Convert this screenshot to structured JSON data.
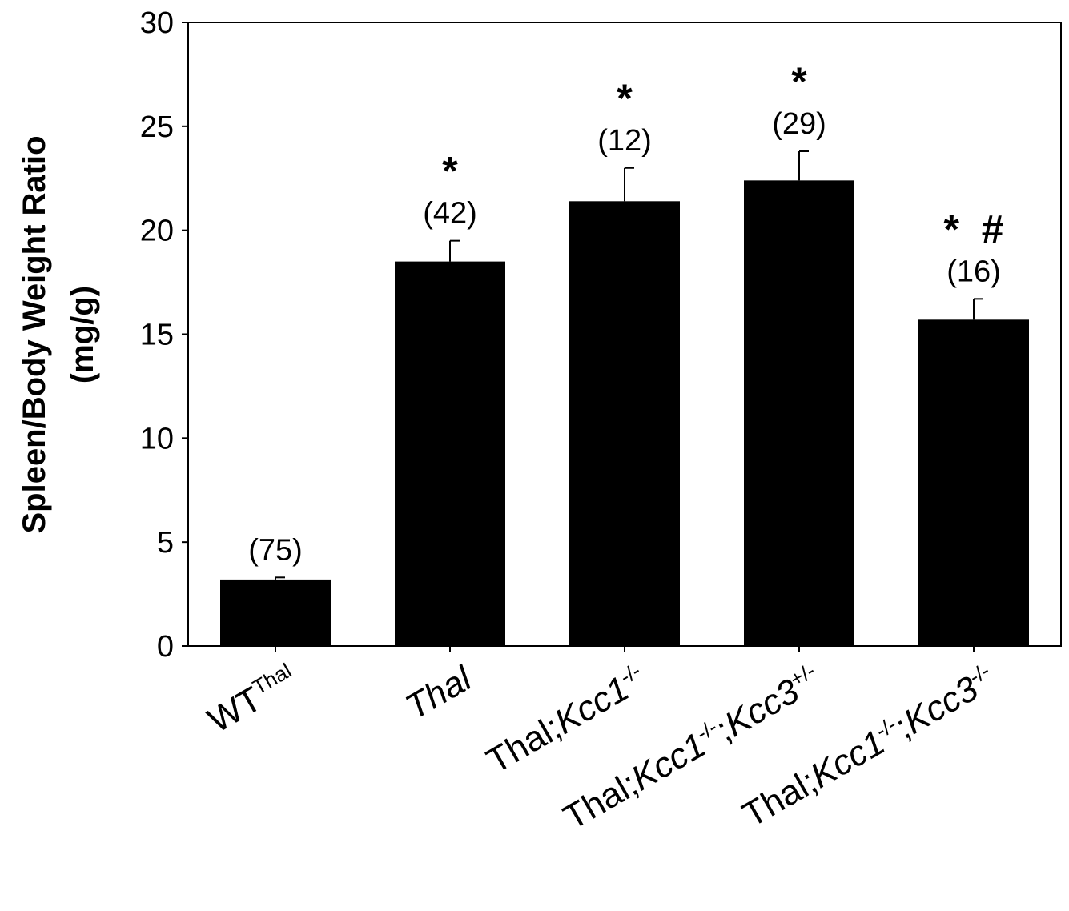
{
  "chart_data": {
    "type": "bar",
    "ylabel_line1": "Spleen/Body Weight Ratio",
    "ylabel_line2": "(mg/g)",
    "xlabel": "",
    "ylim": [
      0,
      30
    ],
    "yticks": [
      0,
      5,
      10,
      15,
      20,
      25,
      30
    ],
    "grid": false,
    "bar_color": "#000000",
    "categories": [
      {
        "parts": [
          {
            "t": "WT",
            "style": "normal"
          },
          {
            "t": "Thal",
            "style": "sup"
          }
        ]
      },
      {
        "parts": [
          {
            "t": "Thal",
            "style": "italic"
          }
        ]
      },
      {
        "parts": [
          {
            "t": "Thal;",
            "style": "normal"
          },
          {
            "t": "Kcc1",
            "style": "italic"
          },
          {
            "t": "-/-",
            "style": "sup"
          }
        ]
      },
      {
        "parts": [
          {
            "t": "Thal;",
            "style": "normal"
          },
          {
            "t": "Kcc1",
            "style": "italic"
          },
          {
            "t": "-/-",
            "style": "sup"
          },
          {
            "t": ";",
            "style": "normal"
          },
          {
            "t": "Kcc3",
            "style": "italic"
          },
          {
            "t": "+/-",
            "style": "sup"
          }
        ]
      },
      {
        "parts": [
          {
            "t": "Thal;",
            "style": "normal"
          },
          {
            "t": "Kcc1",
            "style": "italic"
          },
          {
            "t": "-/-",
            "style": "sup"
          },
          {
            "t": ";",
            "style": "normal"
          },
          {
            "t": "Kcc3",
            "style": "italic"
          },
          {
            "t": "-/-",
            "style": "sup"
          }
        ]
      }
    ],
    "values": [
      3.2,
      18.5,
      21.4,
      22.4,
      15.7
    ],
    "errors": [
      0.1,
      1.0,
      1.6,
      1.4,
      1.0
    ],
    "n_labels": [
      "(75)",
      "(42)",
      "(12)",
      "(29)",
      "(16)"
    ],
    "significance": [
      "",
      "*",
      "*",
      "*",
      "*  #"
    ]
  }
}
